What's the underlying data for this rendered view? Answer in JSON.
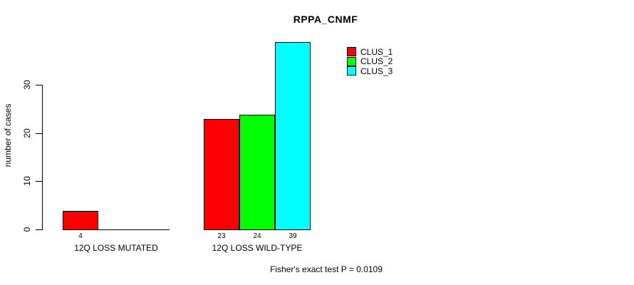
{
  "chart_data": {
    "type": "bar",
    "title": "RPPA_CNMF",
    "ylabel": "number of cases",
    "xlabel": "",
    "categories": [
      "12Q LOSS MUTATED",
      "12Q LOSS WILD-TYPE"
    ],
    "series": [
      {
        "name": "CLUS_1",
        "color": "#FF0000",
        "values": [
          4,
          23
        ]
      },
      {
        "name": "CLUS_2",
        "color": "#00FF00",
        "values": [
          0,
          24
        ]
      },
      {
        "name": "CLUS_3",
        "color": "#00FFFF",
        "values": [
          0,
          39
        ]
      }
    ],
    "bar_labels": [
      [
        "4",
        "",
        ""
      ],
      [
        "23",
        "24",
        "39"
      ]
    ],
    "yticks": [
      0,
      10,
      20,
      30
    ],
    "ylim": [
      0,
      39
    ],
    "grid": false,
    "legend_position": "top-right",
    "annotation": "Fisher's exact test P = 0.0109",
    "colors": {
      "background": "#FFFFFF",
      "axis": "#000000",
      "bar_border": "#000000",
      "text": "#000000"
    }
  }
}
